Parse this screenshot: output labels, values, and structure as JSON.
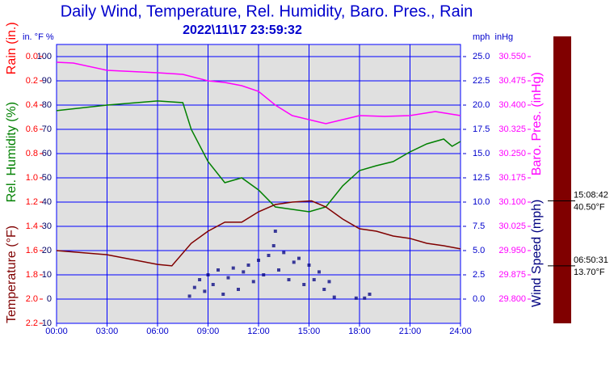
{
  "chart_data": {
    "type": "weather",
    "title": "Daily Wind, Temperature, Rel. Humidity, Baro. Pres., Rain",
    "subtitle": "2022\\11\\17 23:59:32",
    "left_units": "in. °F %",
    "right_units": "mph  inHg",
    "left_axis_labels": [
      {
        "text": "Temperature (°F)",
        "color": "#800000"
      },
      {
        "text": "Rel. Humidity (%)",
        "color": "#008000"
      },
      {
        "text": "Rain (in.)",
        "color": "#ff0000"
      }
    ],
    "right_axis_labels": [
      {
        "text": "Wind Speed (mph)",
        "color": "#000080"
      },
      {
        "text": "Baro. Pres. (inHg)",
        "color": "#ff00ff"
      }
    ],
    "xlim": [
      0,
      24
    ],
    "xticks": [
      {
        "value": 0,
        "label": "00:00"
      },
      {
        "value": 3,
        "label": "03:00"
      },
      {
        "value": 6,
        "label": "06:00"
      },
      {
        "value": 9,
        "label": "09:00"
      },
      {
        "value": 12,
        "label": "12:00"
      },
      {
        "value": 15,
        "label": "15:00"
      },
      {
        "value": 18,
        "label": "18:00"
      },
      {
        "value": 21,
        "label": "21:00"
      },
      {
        "value": 24,
        "label": "24:00"
      }
    ],
    "ylim": [
      -10,
      105
    ],
    "yticks": [
      100,
      90,
      80,
      70,
      60,
      50,
      40,
      30,
      20,
      10,
      0,
      -10
    ],
    "rain_ylim": [
      2.2,
      -0.1
    ],
    "rain_yticks": [
      {
        "value": 0,
        "label": "0.0"
      },
      0.2,
      0.4,
      0.6,
      0.8,
      {
        "value": 1,
        "label": "1.0"
      },
      1.2,
      1.4,
      1.6,
      1.8,
      {
        "value": 2,
        "label": "2.0"
      },
      2.2
    ],
    "y2lim": [
      -2.5,
      26.25
    ],
    "y2ticks": [
      {
        "value": 25,
        "label": "25.0"
      },
      {
        "value": 22.5,
        "label": "22.5"
      },
      {
        "value": 20,
        "label": "20.0"
      },
      {
        "value": 17.5,
        "label": "17.5"
      },
      {
        "value": 15,
        "label": "15.0"
      },
      {
        "value": 12.5,
        "label": "12.5"
      },
      {
        "value": 10,
        "label": "10.0"
      },
      {
        "value": 7.5,
        "label": "7.5"
      },
      {
        "value": 5,
        "label": "5.0"
      },
      {
        "value": 2.5,
        "label": "2.5"
      },
      {
        "value": 0,
        "label": "0.0"
      }
    ],
    "y3lim": [
      29.725,
      30.5875
    ],
    "y3ticks": [
      {
        "value": 30.55,
        "label": "30.550"
      },
      {
        "value": 30.475,
        "label": "30.475"
      },
      {
        "value": 30.4,
        "label": "30.400"
      },
      {
        "value": 30.325,
        "label": "30.325"
      },
      {
        "value": 30.25,
        "label": "30.250"
      },
      {
        "value": 30.175,
        "label": "30.175"
      },
      {
        "value": 30.1,
        "label": "30.100"
      },
      {
        "value": 30.025,
        "label": "30.025"
      },
      {
        "value": 29.95,
        "label": "29.950"
      },
      {
        "value": 29.875,
        "label": "29.875"
      },
      {
        "value": 29.8,
        "label": "29.800"
      }
    ],
    "grid": true,
    "series": [
      {
        "name": "Baro. Pres.",
        "color": "#ff00ff",
        "axis": "y3",
        "style": "line",
        "x": [
          0,
          1,
          3,
          6,
          7.5,
          9,
          10,
          11,
          12,
          13,
          14,
          15,
          16,
          17,
          18,
          19.5,
          21,
          22.5,
          24
        ],
        "values": [
          30.5325,
          30.53,
          30.5075,
          30.5,
          30.495,
          30.475,
          30.47,
          30.46,
          30.4425,
          30.4,
          30.3675,
          30.355,
          30.3425,
          30.355,
          30.3675,
          30.365,
          30.3675,
          30.38,
          30.3675
        ]
      },
      {
        "name": "Rel. Humidity",
        "color": "#008000",
        "axis": "y",
        "style": "line",
        "x": [
          0,
          3,
          6,
          7.5,
          8,
          9,
          10,
          11,
          12,
          13,
          14,
          15,
          16,
          17,
          18,
          19,
          20,
          21,
          22,
          23,
          23.5,
          24
        ],
        "values": [
          77.7,
          80,
          81.7,
          81,
          70,
          56.7,
          48,
          50,
          45,
          38,
          37,
          36,
          38,
          46.7,
          53,
          55,
          56.7,
          60.7,
          64,
          66,
          63,
          65
        ]
      },
      {
        "name": "Temperature",
        "color": "#800000",
        "axis": "y",
        "style": "line",
        "x": [
          0,
          3,
          6,
          6.85,
          8,
          9,
          10,
          11,
          12,
          13,
          14,
          15.15,
          16,
          17,
          18,
          19,
          20,
          21,
          22,
          23,
          24
        ],
        "values": [
          20,
          18.3,
          14.3,
          13.7,
          23,
          28,
          31.7,
          31.7,
          36,
          39,
          40,
          40.5,
          38,
          33,
          29,
          28,
          26,
          25,
          23,
          22,
          20.7
        ]
      },
      {
        "name": "Wind Speed",
        "color": "#000080",
        "axis": "y2",
        "style": "points",
        "x": [
          7.9,
          8.2,
          8.5,
          8.8,
          9.0,
          9.3,
          9.6,
          9.9,
          10.2,
          10.5,
          10.8,
          11.1,
          11.4,
          11.7,
          12.0,
          12.3,
          12.6,
          12.9,
          13.0,
          13.2,
          13.5,
          13.8,
          14.1,
          14.4,
          14.7,
          15.0,
          15.3,
          15.6,
          15.9,
          16.2,
          16.5,
          17.8,
          18.3,
          18.6
        ],
        "values": [
          0.3,
          1.2,
          2.0,
          0.8,
          2.5,
          1.5,
          3.0,
          0.5,
          2.2,
          3.2,
          1.0,
          2.8,
          3.5,
          1.8,
          4.0,
          2.5,
          4.5,
          5.5,
          7.0,
          3.0,
          4.8,
          2.0,
          3.8,
          4.2,
          1.5,
          3.5,
          2.0,
          2.8,
          1.0,
          1.8,
          0.2,
          0.1,
          0.1,
          0.5
        ]
      }
    ],
    "annotations": [
      {
        "time": "15:08:42",
        "label": "40.50°F",
        "value": 40.5
      },
      {
        "time": "06:50:31",
        "label": "13.70°F",
        "value": 13.7
      }
    ]
  }
}
